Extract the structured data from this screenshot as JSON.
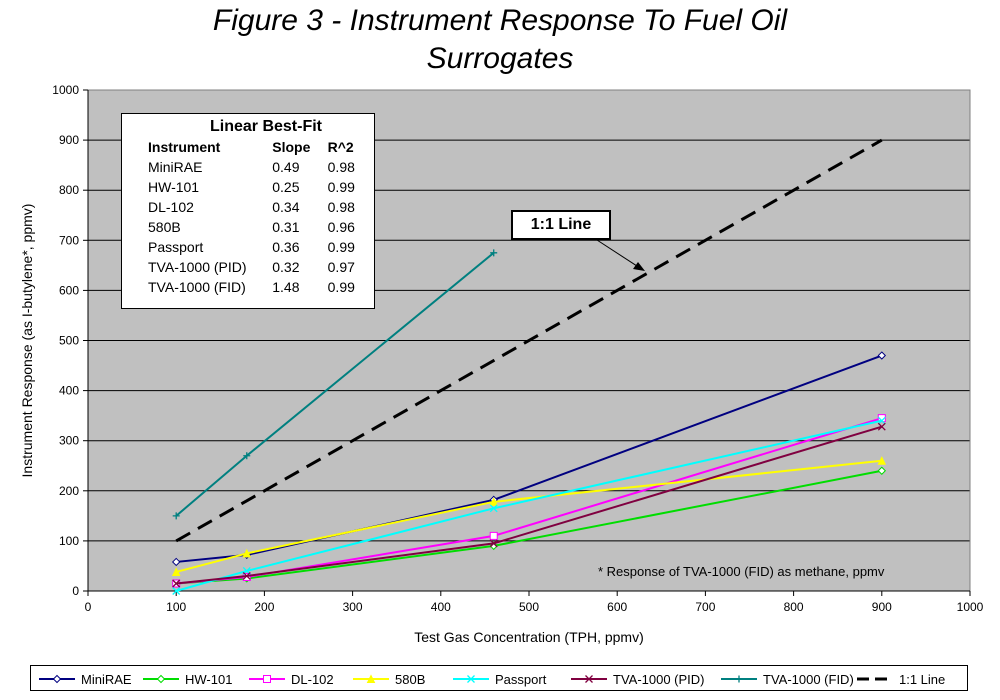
{
  "chart_data": {
    "type": "line",
    "title": "Figure 3 - Instrument Response To Fuel Oil Surrogates",
    "title_lines": [
      "Figure 3 - Instrument Response To Fuel Oil",
      "Surrogates"
    ],
    "xlabel": "Test Gas Concentration (TPH, ppmv)",
    "ylabel": "Instrument Response (as I-butylene*, ppmv)",
    "xlim": [
      0,
      1000
    ],
    "ylim": [
      0,
      1000
    ],
    "x_ticks": [
      0,
      100,
      200,
      300,
      400,
      500,
      600,
      700,
      800,
      900,
      1000
    ],
    "y_ticks": [
      0,
      100,
      200,
      300,
      400,
      500,
      600,
      700,
      800,
      900,
      1000
    ],
    "grid": "horizontal",
    "plot_background": "#c0c0c0",
    "legend_position": "bottom",
    "series": [
      {
        "name": "MiniRAE",
        "color": "#000080",
        "marker": "diamond",
        "x": [
          100,
          180,
          460,
          900
        ],
        "y": [
          58,
          72,
          182,
          470
        ]
      },
      {
        "name": "HW-101",
        "color": "#00dd00",
        "marker": "diamond",
        "x": [
          100,
          180,
          460,
          900
        ],
        "y": [
          15,
          25,
          90,
          240
        ]
      },
      {
        "name": "DL-102",
        "color": "#ff00ff",
        "marker": "square",
        "x": [
          100,
          180,
          460,
          900
        ],
        "y": [
          15,
          28,
          110,
          345
        ]
      },
      {
        "name": "580B",
        "color": "#ffff00",
        "marker": "triangle",
        "x": [
          100,
          180,
          460,
          900
        ],
        "y": [
          38,
          75,
          178,
          260
        ]
      },
      {
        "name": "Passport",
        "color": "#00ffff",
        "marker": "x",
        "x": [
          100,
          180,
          460,
          900
        ],
        "y": [
          0,
          40,
          165,
          340
        ]
      },
      {
        "name": "TVA-1000 (PID)",
        "color": "#800040",
        "marker": "x",
        "x": [
          100,
          180,
          460,
          900
        ],
        "y": [
          15,
          30,
          95,
          328
        ]
      },
      {
        "name": "TVA-1000 (FID)",
        "color": "#008080",
        "marker": "plus",
        "x": [
          100,
          180,
          460
        ],
        "y": [
          150,
          270,
          675
        ]
      },
      {
        "name": "1:1 Line",
        "color": "#000000",
        "marker": "none",
        "dashed": true,
        "x": [
          100,
          180,
          460,
          900
        ],
        "y": [
          100,
          180,
          460,
          900
        ]
      }
    ],
    "annotations": {
      "footnote": "* Response of TVA-1000 (FID) as methane, ppmv",
      "callout": "1:1 Line"
    }
  },
  "fit_table": {
    "title": "Linear Best-Fit",
    "headers": [
      "Instrument",
      "Slope",
      "R^2"
    ],
    "rows": [
      [
        "MiniRAE",
        "0.49",
        "0.98"
      ],
      [
        "HW-101",
        "0.25",
        "0.99"
      ],
      [
        "DL-102",
        "0.34",
        "0.98"
      ],
      [
        "580B",
        "0.31",
        "0.96"
      ],
      [
        "Passport",
        "0.36",
        "0.99"
      ],
      [
        "TVA-1000 (PID)",
        "0.32",
        "0.97"
      ],
      [
        "TVA-1000 (FID)",
        "1.48",
        "0.99"
      ]
    ]
  }
}
